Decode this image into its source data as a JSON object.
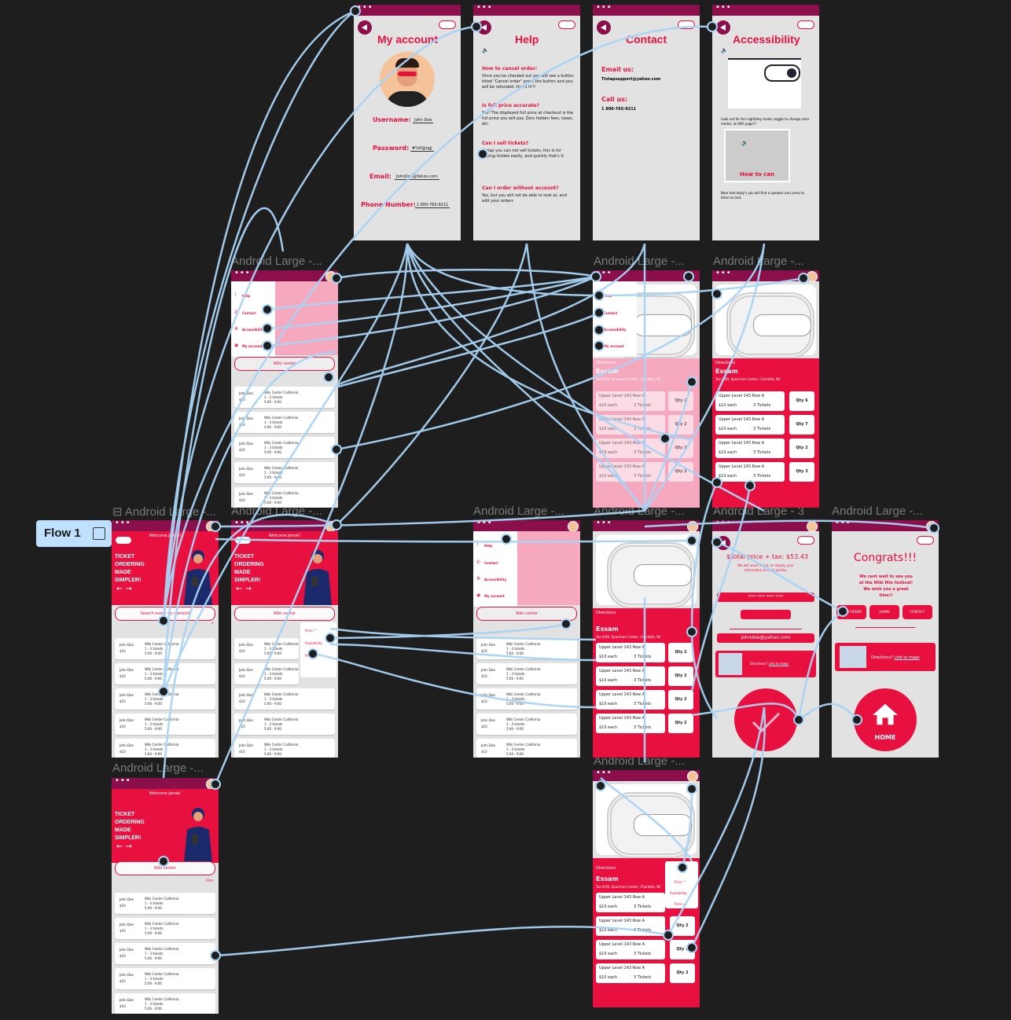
{
  "canvas_labels": {
    "l1": "Android Large -...",
    "l2": "Android Large -...",
    "l3": "Android Large -...",
    "l4": "Android Large -...",
    "l5": "Android Large -...",
    "l6": "Android Large -...",
    "l7": "Android Large -...",
    "l8": "Android Large -...",
    "l9": "Android Large - 3",
    "l10": "Android Large -...",
    "l11": "Android Large -...",
    "l12": "Android Large -..."
  },
  "flow": {
    "label": "Flow 1"
  },
  "my_account": {
    "title": "My account",
    "username_label": "Username:",
    "username": "John Doe",
    "password_label": "Password:",
    "password": "#%ft@rgjj",
    "email_label": "Email:",
    "email": "JohnDoe@Yahoo.com",
    "phone_label": "Phone Number:",
    "phone": "1 800-765-9211"
  },
  "help": {
    "title": "Help",
    "q1": "How to cancel order:",
    "a1": "Once you've checked out you will see a button titled \"Cancel order\" press the button and you will be refunded, that's it!!!",
    "q2": "Is full price accurate?",
    "a2": "Yes! The displayed full price at checkout is the full price you will pay. Zero hidden fees, taxes, etc.",
    "q3": "Can I sell tickets?",
    "a3": "Tixtap you can not sell tickets, this is for buying tickets easily, and quickly that's it.",
    "q4": "Can I order without account?",
    "a4": "Yes, but you will not be able to look at, and edit your orders"
  },
  "contact": {
    "title": "Contact",
    "email_label": "Email us:",
    "email": "Tixtapsupport@yahoo.com",
    "call_label": "Call us:",
    "phone": "1 800-765-9211"
  },
  "accessibility": {
    "title": "Accessibility",
    "text1": "Look out for the night/day mode, toggle to change color modes, at ANY page!!!",
    "video_caption": "How to can",
    "text2": "Near text body's you will find a speaker icon press to listen to text."
  },
  "home": {
    "welcome": "Welcome Jamie!",
    "headline1": "TICKET",
    "headline2": "ORDERING",
    "headline3": "MADE",
    "headline4": "SIMPLER!",
    "search_placeholder": "Search event by name/id",
    "search_value": "Wiki center",
    "filter": "Filter"
  },
  "list_item": {
    "name": "John Doe",
    "price": "$10",
    "venue": "Wiki Center California",
    "tickets": "1 - 3 tickets",
    "time": "5:00 - 9:00"
  },
  "menu": {
    "help": "Help",
    "contact": "Contact",
    "accessibility": "Accessibility",
    "account": "My account"
  },
  "event": {
    "directions": "Directions",
    "name": "Essam",
    "address": "Tue 8:00, Spectrum Center, Charlotte, NC",
    "seat": "Upper Level 143  Row A",
    "each": "$10 each",
    "tickets": "3 Tickets",
    "qty_2": "Qty 2",
    "qty_3": "Qty 3",
    "qty_6": "Qty 6",
    "qty_7": "Qty 7",
    "sort_price_up": "Price ^",
    "sort_price_down": "Price v",
    "sort_availability": "Availability"
  },
  "checkout": {
    "total": "$Total price + tax: $53.43",
    "note": "We will never share, or display your information to third parties.",
    "card_mask": "****  ****  ****  ****",
    "email": "johndoe@yahoo.com",
    "directions": "Directions?",
    "link": "Link to maps"
  },
  "congrats": {
    "title": "Congrats!!!",
    "message": "We cant wait to see you at the Wiki film festival! We wish you a great time!!",
    "btn_order": "VIEW ORDER",
    "btn_share": "SHARE",
    "btn_contact": "CONTACT",
    "directions": "Directions?",
    "link": "Link to maps",
    "home": "HOME"
  },
  "colors": {
    "brand": "#e8103f",
    "bar": "#8b0f4a",
    "wire": "#a9d4f5",
    "canvas": "#1e1e1e"
  }
}
